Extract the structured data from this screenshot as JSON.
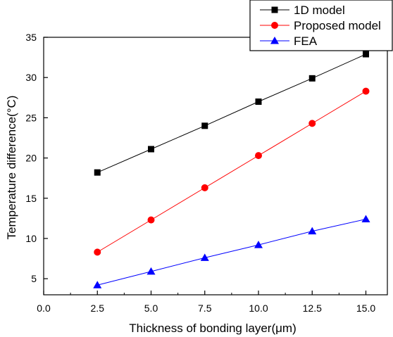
{
  "chart_data": {
    "type": "line",
    "title": "",
    "xlabel": "Thickness of bonding layer(μm)",
    "ylabel": "Temperature difference(°C)",
    "xlim": [
      0.0,
      16.0
    ],
    "ylim": [
      3.0,
      35.0
    ],
    "x_ticks": [
      "0.0",
      "2.5",
      "5.0",
      "7.5",
      "10.0",
      "12.5",
      "15.0"
    ],
    "y_ticks": [
      "5",
      "10",
      "15",
      "20",
      "25",
      "30",
      "35"
    ],
    "x": [
      2.5,
      5.0,
      7.5,
      10.0,
      12.5,
      15.0
    ],
    "series": [
      {
        "name": "1D model",
        "values": [
          18.2,
          21.1,
          24.0,
          27.0,
          29.9,
          32.9
        ],
        "color": "#000000",
        "marker": "square"
      },
      {
        "name": "Proposed model",
        "values": [
          8.3,
          12.3,
          16.3,
          20.3,
          24.3,
          28.3
        ],
        "color": "#ff0000",
        "marker": "circle"
      },
      {
        "name": "FEA",
        "values": [
          4.2,
          5.9,
          7.6,
          9.2,
          10.9,
          12.4
        ],
        "color": "#0000ff",
        "marker": "triangle"
      }
    ],
    "legend_position": "top-right",
    "grid": false
  }
}
